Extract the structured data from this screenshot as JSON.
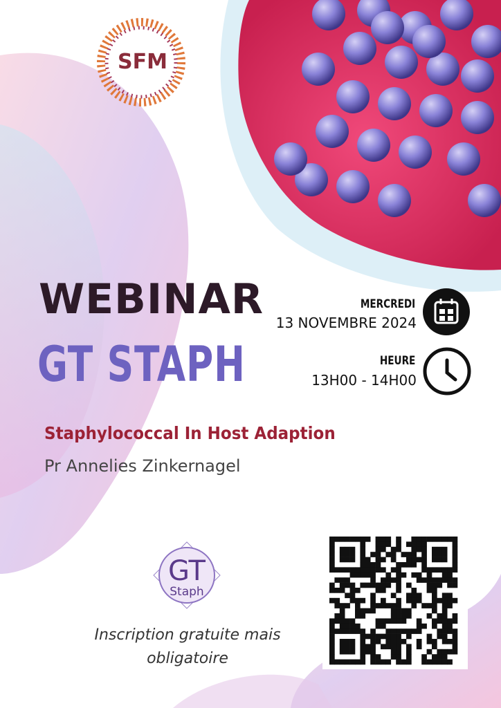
{
  "logo": {
    "text": "SFM"
  },
  "header": {
    "title": "WEBINAR",
    "subtitle": "GT STAPH"
  },
  "schedule": {
    "day_label": "MERCREDI",
    "date": "13 NOVEMBRE 2024",
    "time_label": "HEURE",
    "time": "13H00 - 14H00"
  },
  "talk": {
    "title": "Staphylococcal In Host Adaption",
    "speaker": "Pr  Annelies Zinkernagel"
  },
  "group_logo": {
    "top": "GT",
    "bottom": "Staph"
  },
  "registration": {
    "lines": [
      "Inscription gratuite mais",
      "obligatoire"
    ]
  }
}
